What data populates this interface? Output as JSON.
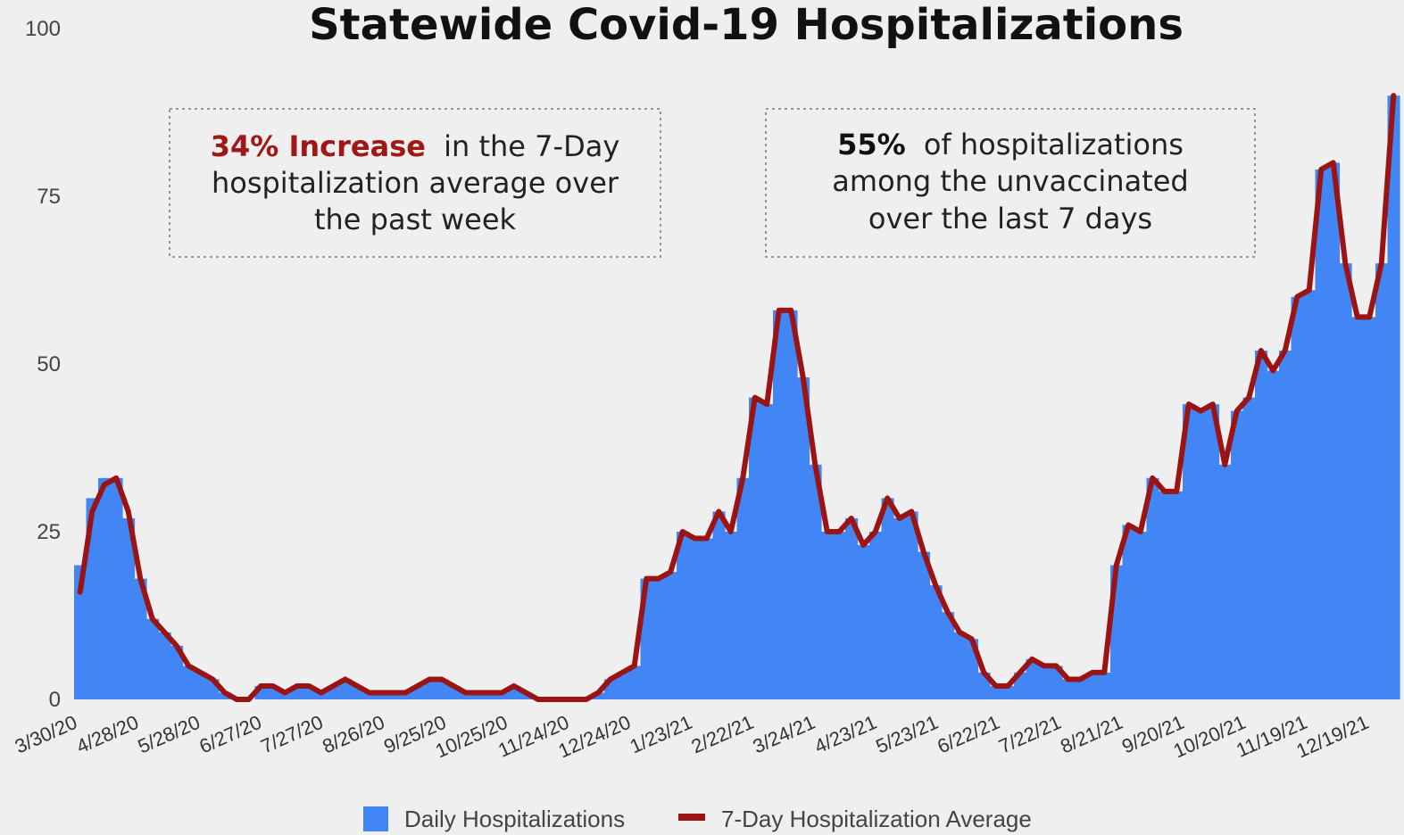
{
  "chart_data": {
    "type": "bar",
    "title": "Statewide Covid-19 Hospitalizations",
    "ylim": [
      0,
      100
    ],
    "y_ticks": [
      "100",
      "75",
      "50",
      "25",
      "0"
    ],
    "x_tick_labels": [
      "3/30/20",
      "4/28/20",
      "5/28/20",
      "6/27/20",
      "7/27/20",
      "8/26/20",
      "9/25/20",
      "10/25/20",
      "11/24/20",
      "12/24/20",
      "1/23/21",
      "2/22/21",
      "3/24/21",
      "4/23/21",
      "5/23/21",
      "6/22/21",
      "7/22/21",
      "8/21/21",
      "9/20/21",
      "10/20/21",
      "11/19/21",
      "12/19/21"
    ],
    "grid": false,
    "legend_position": "bottom",
    "series": [
      {
        "name": "Daily Hospitalizations",
        "kind": "bar",
        "color": "#4285f4",
        "values_weekly_approx": [
          20,
          30,
          33,
          33,
          27,
          18,
          12,
          10,
          8,
          5,
          4,
          3,
          1,
          0,
          0,
          2,
          2,
          1,
          2,
          2,
          1,
          2,
          3,
          2,
          1,
          1,
          1,
          1,
          2,
          3,
          3,
          2,
          1,
          1,
          1,
          1,
          2,
          1,
          0,
          0,
          0,
          0,
          0,
          1,
          3,
          4,
          5,
          18,
          18,
          19,
          25,
          24,
          24,
          28,
          25,
          33,
          45,
          44,
          58,
          58,
          48,
          35,
          25,
          25,
          27,
          23,
          25,
          30,
          27,
          28,
          22,
          17,
          13,
          10,
          9,
          4,
          2,
          2,
          4,
          6,
          5,
          5,
          3,
          3,
          4,
          4,
          20,
          26,
          25,
          33,
          31,
          31,
          44,
          43,
          44,
          35,
          43,
          45,
          52,
          49,
          52,
          60,
          61,
          79,
          80,
          65,
          57,
          57,
          65,
          90
        ]
      },
      {
        "name": "7-Day Hospitalization Average",
        "kind": "line",
        "color": "#9b1414",
        "values_weekly_approx": [
          16,
          28,
          32,
          33,
          28,
          18,
          12,
          10,
          8,
          5,
          4,
          3,
          1,
          0,
          0,
          2,
          2,
          1,
          2,
          2,
          1,
          2,
          3,
          2,
          1,
          1,
          1,
          1,
          2,
          3,
          3,
          2,
          1,
          1,
          1,
          1,
          2,
          1,
          0,
          0,
          0,
          0,
          0,
          1,
          3,
          4,
          5,
          18,
          18,
          19,
          25,
          24,
          24,
          28,
          25,
          33,
          45,
          44,
          58,
          58,
          48,
          35,
          25,
          25,
          27,
          23,
          25,
          30,
          27,
          28,
          22,
          17,
          13,
          10,
          9,
          4,
          2,
          2,
          4,
          6,
          5,
          5,
          3,
          3,
          4,
          4,
          20,
          26,
          25,
          33,
          31,
          31,
          44,
          43,
          44,
          35,
          43,
          45,
          52,
          49,
          52,
          60,
          61,
          79,
          80,
          65,
          57,
          57,
          65,
          90
        ]
      }
    ],
    "annotations": [
      {
        "strong": "34% Increase",
        "lines": [
          "in the 7-Day",
          "hospitalization average over",
          "the past week"
        ]
      },
      {
        "strong": "55%",
        "lines": [
          "of hospitalizations",
          "among the unvaccinated",
          "over the last 7 days"
        ]
      }
    ]
  }
}
